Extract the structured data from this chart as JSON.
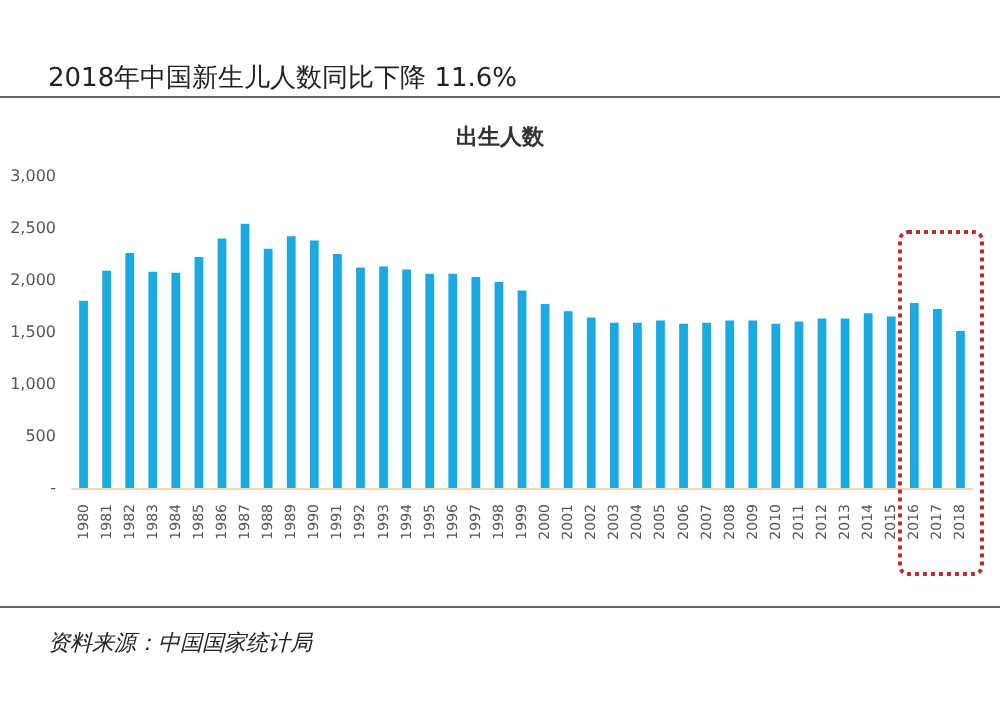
{
  "chart_data": {
    "type": "bar",
    "title": "2018年中国新生儿人数同比下降 11.6%",
    "subtitle": "出生人数",
    "categories": [
      "1980",
      "1981",
      "1982",
      "1983",
      "1984",
      "1985",
      "1986",
      "1987",
      "1988",
      "1989",
      "1990",
      "1991",
      "1992",
      "1993",
      "1994",
      "1995",
      "1996",
      "1997",
      "1998",
      "1999",
      "2000",
      "2001",
      "2002",
      "2003",
      "2004",
      "2005",
      "2006",
      "2007",
      "2008",
      "2009",
      "2010",
      "2011",
      "2012",
      "2013",
      "2014",
      "2015",
      "2016",
      "2017",
      "2018"
    ],
    "values": [
      1800,
      2090,
      2260,
      2080,
      2070,
      2220,
      2400,
      2540,
      2300,
      2420,
      2380,
      2250,
      2120,
      2130,
      2100,
      2060,
      2060,
      2030,
      1980,
      1900,
      1770,
      1700,
      1640,
      1590,
      1590,
      1610,
      1580,
      1590,
      1610,
      1610,
      1580,
      1600,
      1630,
      1630,
      1680,
      1650,
      1780,
      1720,
      1510
    ],
    "color": "#1aa9e0",
    "ylim": [
      0,
      3000
    ],
    "yticks": [
      {
        "value": 0,
        "label": "-"
      },
      {
        "value": 500,
        "label": "500"
      },
      {
        "value": 1000,
        "label": "1,000"
      },
      {
        "value": 1500,
        "label": "1,500"
      },
      {
        "value": 2000,
        "label": "2,000"
      },
      {
        "value": 2500,
        "label": "2,500"
      },
      {
        "value": 3000,
        "label": "3,000"
      }
    ],
    "grid": false,
    "annotations": [
      "资料来源：中国国家统计局"
    ]
  }
}
